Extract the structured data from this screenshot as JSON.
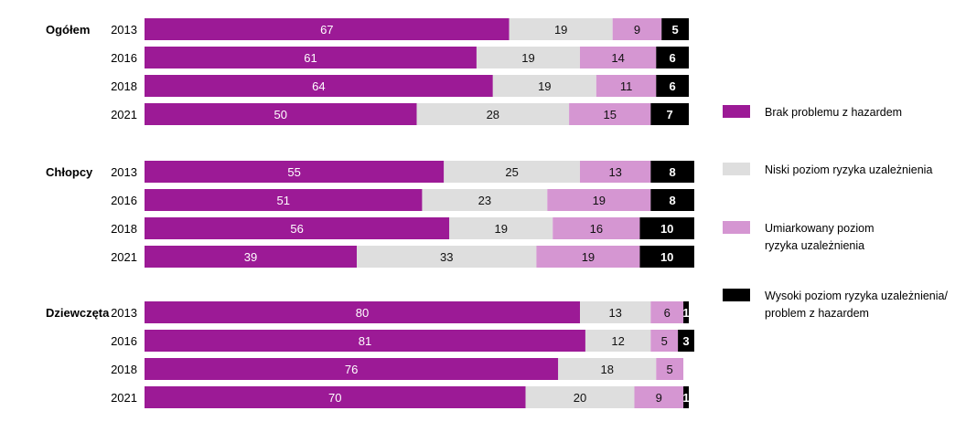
{
  "chart_data": {
    "type": "bar",
    "orientation": "horizontal",
    "stacked": true,
    "percent": true,
    "xlim": [
      0,
      100
    ],
    "grid": false,
    "legend_position": "right",
    "series": [
      {
        "name": "Brak problemu z hazardem",
        "label_lines": [
          "Brak problemu z hazardem"
        ],
        "color": "#9c1a96",
        "text_color": "#ffffff"
      },
      {
        "name": "Niski poziom ryzyka uzależnienia",
        "label_lines": [
          "Niski poziom ryzyka uzależnienia"
        ],
        "color": "#dedede",
        "text_color": "#111111"
      },
      {
        "name": "Umiarkowany poziom ryzyka uzależnienia",
        "label_lines": [
          "Umiarkowany poziom",
          "ryzyka uzależnienia"
        ],
        "color": "#d596d2",
        "text_color": "#111111"
      },
      {
        "name": "Wysoki poziom ryzyka uzależnienia/ problem z hazardem",
        "label_lines": [
          "Wysoki poziom ryzyka uzależnienia/",
          "problem z hazardem"
        ],
        "color": "#000000",
        "text_color": "#ffffff"
      }
    ],
    "groups": [
      {
        "name": "Ogółem",
        "rows": [
          {
            "year": "2013",
            "values": [
              67,
              19,
              9,
              5
            ]
          },
          {
            "year": "2016",
            "values": [
              61,
              19,
              14,
              6
            ]
          },
          {
            "year": "2018",
            "values": [
              64,
              19,
              11,
              6
            ]
          },
          {
            "year": "2021",
            "values": [
              50,
              28,
              15,
              7
            ]
          }
        ]
      },
      {
        "name": "Chłopcy",
        "rows": [
          {
            "year": "2013",
            "values": [
              55,
              25,
              13,
              8
            ]
          },
          {
            "year": "2016",
            "values": [
              51,
              23,
              19,
              8
            ]
          },
          {
            "year": "2018",
            "values": [
              56,
              19,
              16,
              10
            ]
          },
          {
            "year": "2021",
            "values": [
              39,
              33,
              19,
              10
            ]
          }
        ]
      },
      {
        "name": "Dziewczęta",
        "rows": [
          {
            "year": "2013",
            "values": [
              80,
              13,
              6,
              1
            ]
          },
          {
            "year": "2016",
            "values": [
              81,
              12,
              5,
              3
            ]
          },
          {
            "year": "2018",
            "values": [
              76,
              18,
              5,
              null
            ]
          },
          {
            "year": "2021",
            "values": [
              70,
              20,
              9,
              1
            ]
          }
        ]
      }
    ]
  }
}
